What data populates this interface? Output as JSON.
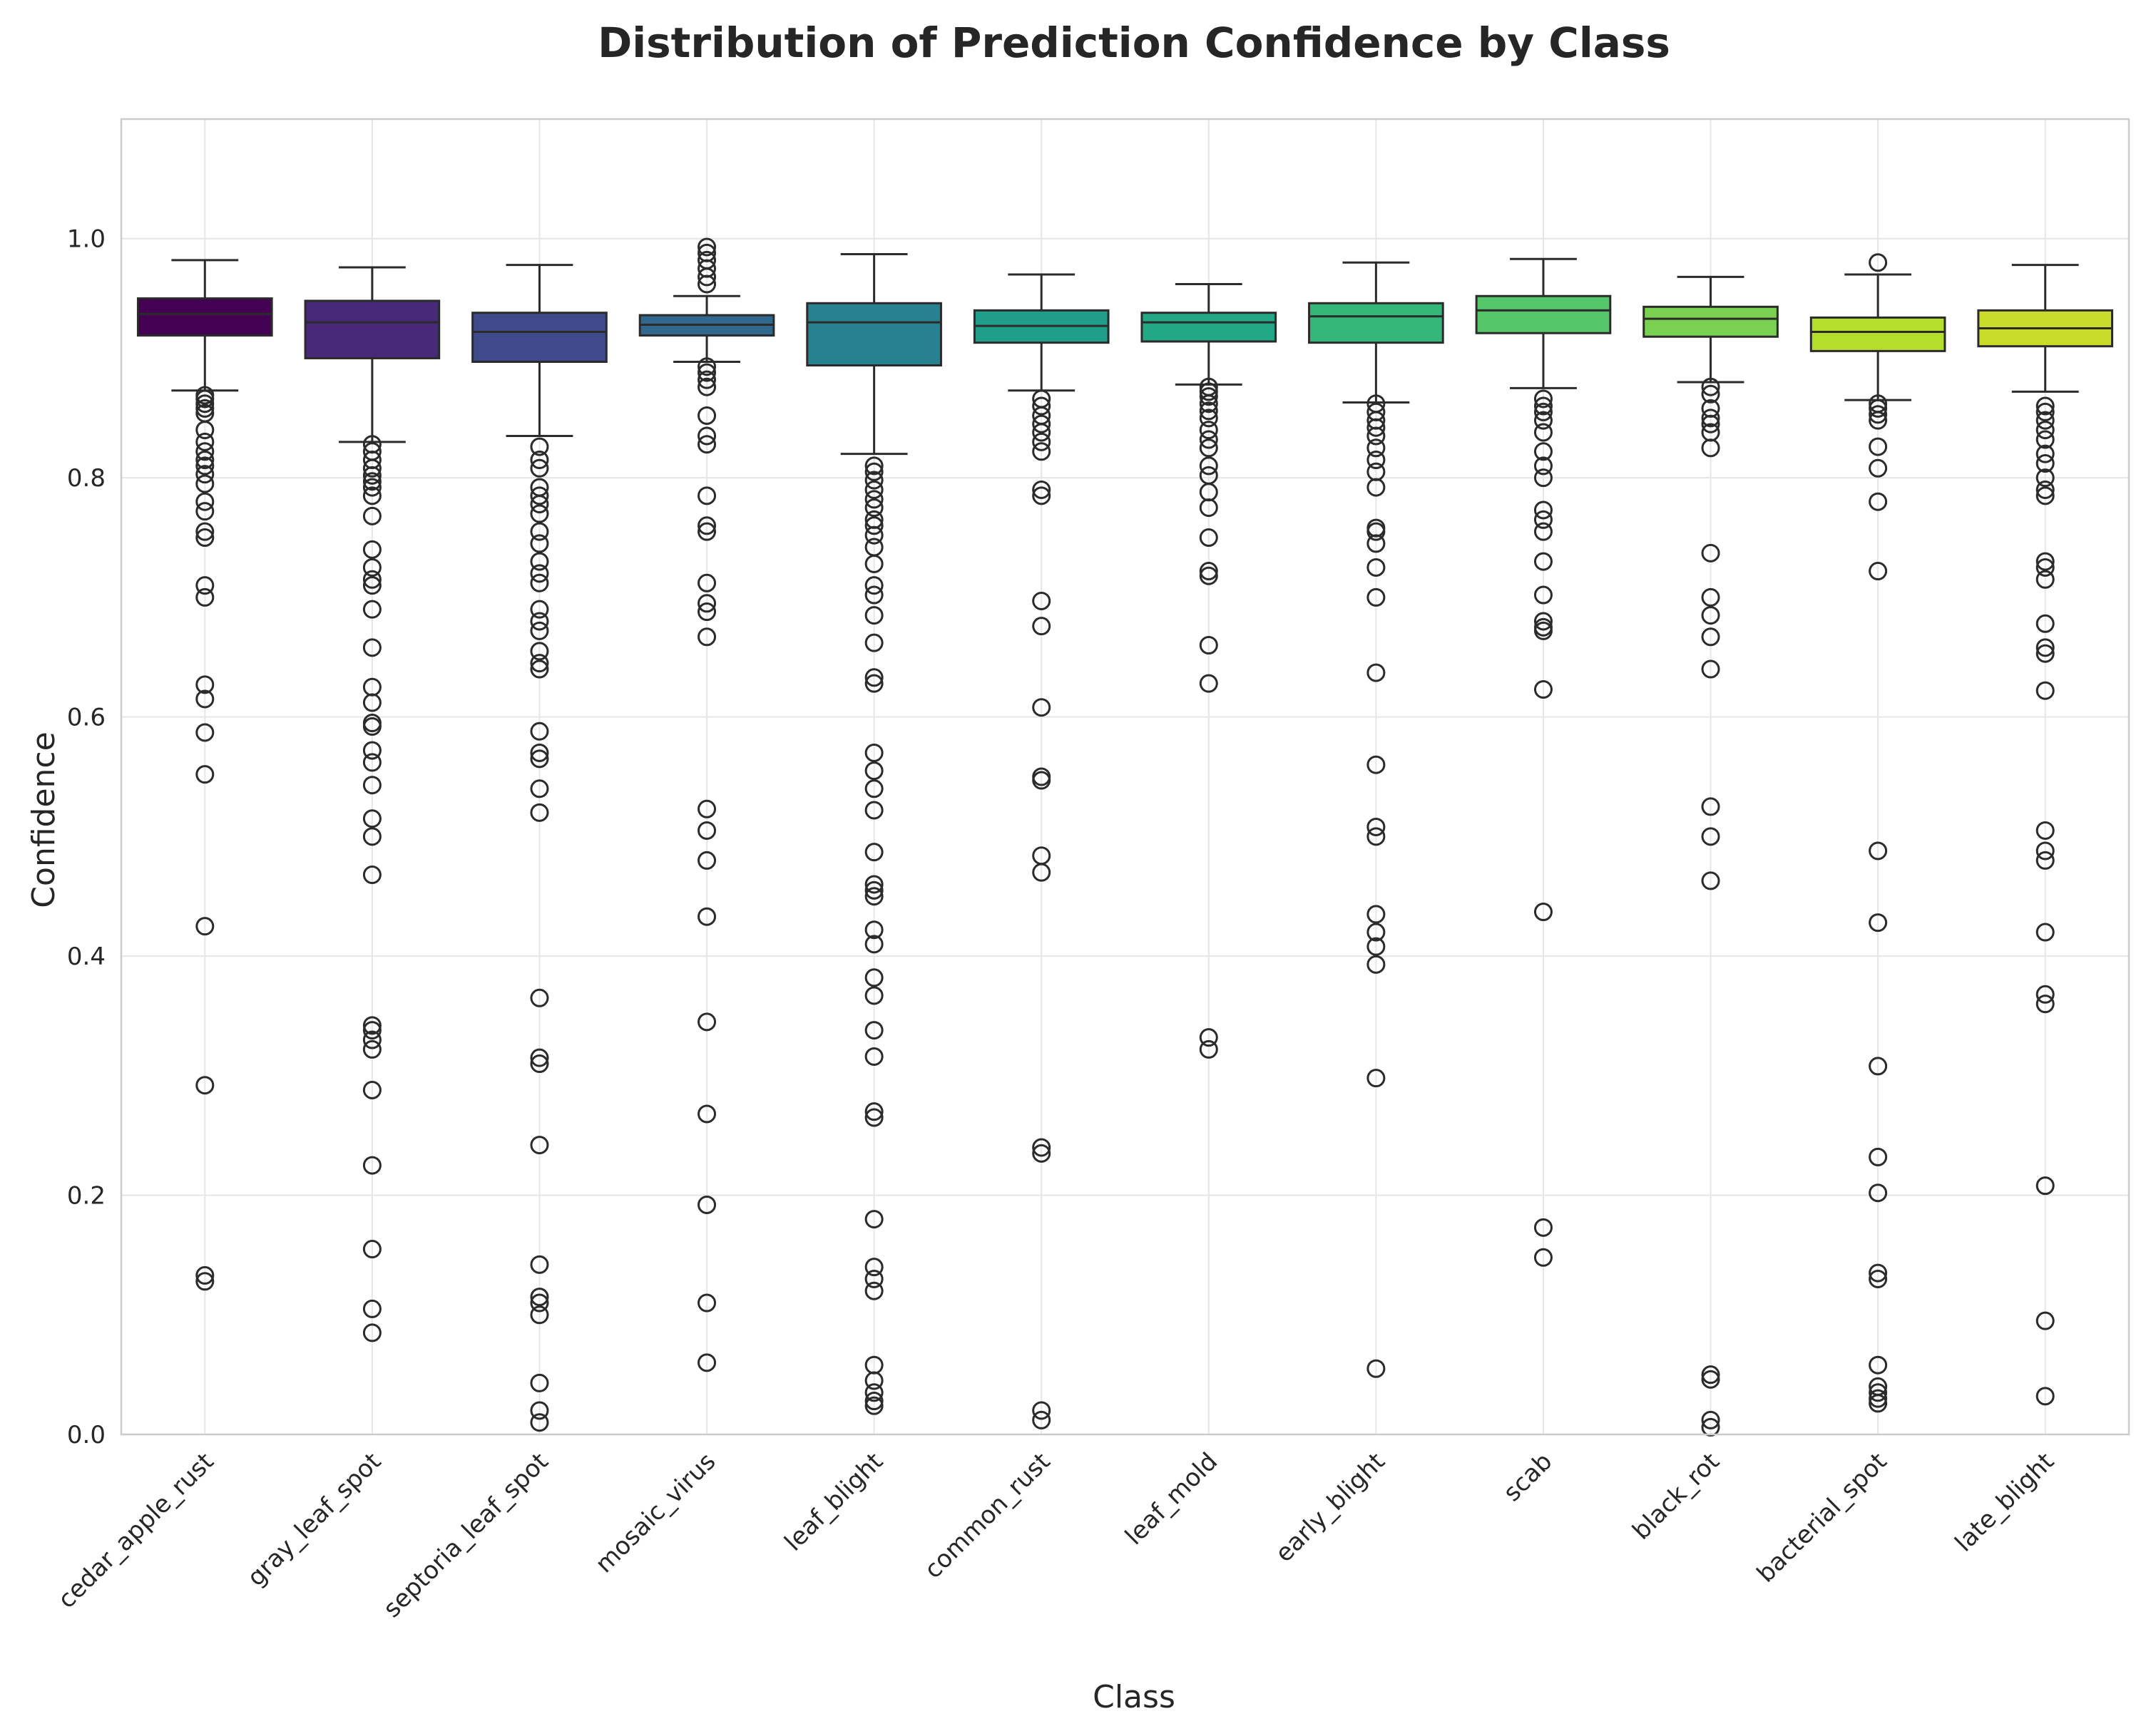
{
  "chart_data": {
    "type": "box",
    "title": "Distribution of Prediction Confidence by Class",
    "xlabel": "Class",
    "ylabel": "Confidence",
    "ylim": [
      0.0,
      1.1
    ],
    "yticks": [
      "0.0",
      "0.2",
      "0.4",
      "0.6",
      "0.8",
      "1.0"
    ],
    "grid": true,
    "categories": [
      "cedar_apple_rust",
      "gray_leaf_spot",
      "septoria_leaf_spot",
      "mosaic_virus",
      "leaf_blight",
      "common_rust",
      "leaf_mold",
      "early_blight",
      "scab",
      "black_rot",
      "bacterial_spot",
      "late_blight"
    ],
    "colors": [
      "#440154",
      "#482979",
      "#3e4a89",
      "#31688e",
      "#26828e",
      "#1f9e89",
      "#22a884",
      "#35b779",
      "#54c568",
      "#7ad151",
      "#b5de2b",
      "#c9dc2a"
    ],
    "boxes": [
      {
        "whislo": 0.873,
        "q1": 0.919,
        "med": 0.937,
        "q3": 0.95,
        "whishi": 0.982,
        "fliers": [
          0.869,
          0.866,
          0.862,
          0.858,
          0.854,
          0.84,
          0.83,
          0.822,
          0.815,
          0.81,
          0.803,
          0.795,
          0.78,
          0.772,
          0.755,
          0.75,
          0.71,
          0.7,
          0.627,
          0.615,
          0.587,
          0.552,
          0.425,
          0.292,
          0.133,
          0.128
        ]
      },
      {
        "whislo": 0.83,
        "q1": 0.9,
        "med": 0.93,
        "q3": 0.948,
        "whishi": 0.976,
        "fliers": [
          0.828,
          0.822,
          0.815,
          0.808,
          0.802,
          0.797,
          0.792,
          0.785,
          0.768,
          0.74,
          0.725,
          0.715,
          0.71,
          0.69,
          0.658,
          0.625,
          0.612,
          0.595,
          0.592,
          0.572,
          0.562,
          0.543,
          0.515,
          0.5,
          0.468,
          0.342,
          0.338,
          0.33,
          0.322,
          0.288,
          0.225,
          0.155,
          0.105,
          0.085
        ]
      },
      {
        "whislo": 0.835,
        "q1": 0.897,
        "med": 0.922,
        "q3": 0.938,
        "whishi": 0.978,
        "fliers": [
          0.826,
          0.815,
          0.808,
          0.792,
          0.785,
          0.778,
          0.77,
          0.755,
          0.745,
          0.73,
          0.72,
          0.712,
          0.69,
          0.68,
          0.672,
          0.655,
          0.645,
          0.64,
          0.588,
          0.57,
          0.565,
          0.54,
          0.52,
          0.365,
          0.315,
          0.31,
          0.242,
          0.142,
          0.115,
          0.11,
          0.1,
          0.043,
          0.02,
          0.01
        ]
      },
      {
        "whislo": 0.897,
        "q1": 0.919,
        "med": 0.928,
        "q3": 0.936,
        "whishi": 0.952,
        "fliers": [
          0.993,
          0.988,
          0.982,
          0.975,
          0.968,
          0.962,
          0.893,
          0.888,
          0.882,
          0.876,
          0.852,
          0.835,
          0.828,
          0.785,
          0.76,
          0.755,
          0.712,
          0.695,
          0.688,
          0.667,
          0.523,
          0.505,
          0.48,
          0.433,
          0.345,
          0.268,
          0.192,
          0.11,
          0.06
        ]
      },
      {
        "whislo": 0.82,
        "q1": 0.894,
        "med": 0.93,
        "q3": 0.946,
        "whishi": 0.987,
        "fliers": [
          0.81,
          0.805,
          0.798,
          0.79,
          0.782,
          0.775,
          0.765,
          0.76,
          0.752,
          0.742,
          0.728,
          0.71,
          0.702,
          0.685,
          0.662,
          0.633,
          0.628,
          0.57,
          0.555,
          0.54,
          0.522,
          0.487,
          0.46,
          0.455,
          0.45,
          0.422,
          0.41,
          0.382,
          0.367,
          0.338,
          0.316,
          0.27,
          0.265,
          0.18,
          0.14,
          0.13,
          0.12,
          0.058,
          0.045,
          0.035,
          0.028,
          0.024
        ]
      },
      {
        "whislo": 0.873,
        "q1": 0.913,
        "med": 0.927,
        "q3": 0.94,
        "whishi": 0.97,
        "fliers": [
          0.866,
          0.86,
          0.852,
          0.845,
          0.838,
          0.83,
          0.822,
          0.79,
          0.785,
          0.697,
          0.676,
          0.608,
          0.55,
          0.547,
          0.484,
          0.47,
          0.24,
          0.235,
          0.02,
          0.012
        ]
      },
      {
        "whislo": 0.878,
        "q1": 0.914,
        "med": 0.93,
        "q3": 0.938,
        "whishi": 0.962,
        "fliers": [
          0.876,
          0.872,
          0.868,
          0.862,
          0.856,
          0.85,
          0.84,
          0.832,
          0.825,
          0.81,
          0.802,
          0.788,
          0.775,
          0.75,
          0.722,
          0.718,
          0.66,
          0.628,
          0.332,
          0.322
        ]
      },
      {
        "whislo": 0.863,
        "q1": 0.913,
        "med": 0.935,
        "q3": 0.946,
        "whishi": 0.98,
        "fliers": [
          0.862,
          0.855,
          0.848,
          0.842,
          0.835,
          0.825,
          0.815,
          0.805,
          0.792,
          0.758,
          0.755,
          0.745,
          0.725,
          0.7,
          0.637,
          0.56,
          0.508,
          0.5,
          0.435,
          0.42,
          0.408,
          0.393,
          0.298,
          0.055
        ]
      },
      {
        "whislo": 0.875,
        "q1": 0.921,
        "med": 0.94,
        "q3": 0.952,
        "whishi": 0.983,
        "fliers": [
          0.866,
          0.86,
          0.855,
          0.848,
          0.838,
          0.822,
          0.81,
          0.8,
          0.773,
          0.765,
          0.755,
          0.73,
          0.702,
          0.68,
          0.675,
          0.672,
          0.623,
          0.437,
          0.173,
          0.148
        ]
      },
      {
        "whislo": 0.88,
        "q1": 0.918,
        "med": 0.933,
        "q3": 0.943,
        "whishi": 0.968,
        "fliers": [
          0.876,
          0.87,
          0.858,
          0.85,
          0.845,
          0.838,
          0.825,
          0.737,
          0.7,
          0.685,
          0.667,
          0.64,
          0.525,
          0.5,
          0.463,
          0.05,
          0.046,
          0.012,
          0.006
        ]
      },
      {
        "whislo": 0.865,
        "q1": 0.906,
        "med": 0.922,
        "q3": 0.934,
        "whishi": 0.97,
        "fliers": [
          0.98,
          0.862,
          0.858,
          0.853,
          0.848,
          0.826,
          0.808,
          0.78,
          0.722,
          0.488,
          0.428,
          0.308,
          0.232,
          0.202,
          0.135,
          0.13,
          0.058,
          0.04,
          0.035,
          0.03,
          0.026
        ]
      },
      {
        "whislo": 0.872,
        "q1": 0.91,
        "med": 0.925,
        "q3": 0.94,
        "whishi": 0.978,
        "fliers": [
          0.86,
          0.855,
          0.848,
          0.84,
          0.832,
          0.82,
          0.812,
          0.8,
          0.79,
          0.785,
          0.73,
          0.725,
          0.715,
          0.678,
          0.658,
          0.653,
          0.622,
          0.505,
          0.488,
          0.48,
          0.42,
          0.368,
          0.36,
          0.208,
          0.095,
          0.032
        ]
      }
    ]
  }
}
